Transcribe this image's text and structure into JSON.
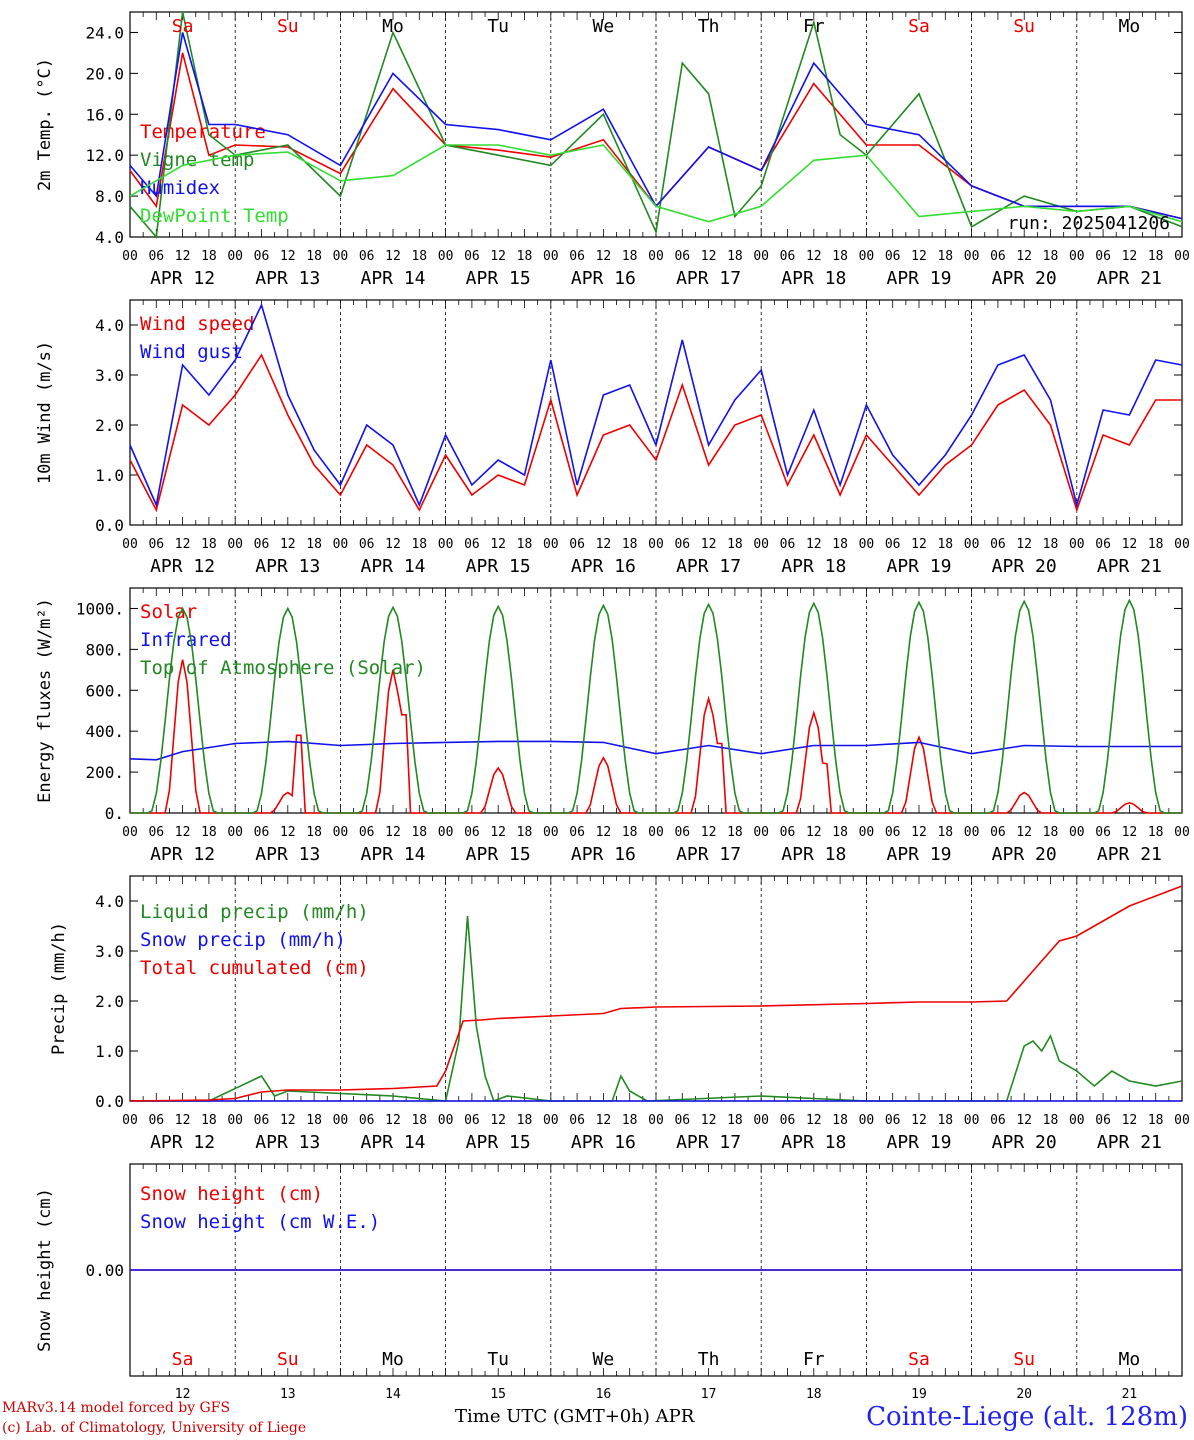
{
  "days": {
    "weekday_labels": [
      "Sa",
      "Su",
      "Mo",
      "Tu",
      "We",
      "Th",
      "Fr",
      "Sa",
      "Su",
      "Mo"
    ],
    "weekday_weekend": [
      true,
      true,
      false,
      false,
      false,
      false,
      false,
      true,
      true,
      false
    ],
    "date_labels": [
      "APR 12",
      "APR 13",
      "APR 14",
      "APR 15",
      "APR 16",
      "APR 17",
      "APR 18",
      "APR 19",
      "APR 20",
      "APR 21"
    ],
    "day_numbers": [
      "12",
      "13",
      "14",
      "15",
      "16",
      "17",
      "18",
      "19",
      "20",
      "21"
    ],
    "hour_ticks": [
      "00",
      "06",
      "12",
      "18"
    ],
    "hour_end": "00"
  },
  "colors": {
    "red": "#ee0000",
    "green": "#228822",
    "blue": "#1111ee",
    "lightgreen": "#33dd33",
    "weekend": "#ee0000"
  },
  "footer": {
    "line1": "MARv3.14 model forced by GFS",
    "line2": "(c) Lab. of Climatology, University of Liege",
    "axis_title": "Time UTC (GMT+0h)",
    "month": "APR",
    "station": "Cointe-Liege (alt. 128m)"
  },
  "chart_data": [
    {
      "type": "line",
      "ylabel": "2m Temp. (°C)",
      "ylim": [
        4.0,
        26.0
      ],
      "yticks": [
        "4.0",
        "8.0",
        "12.0",
        "16.0",
        "20.0",
        "24.0"
      ],
      "annotation": "run: 2025041206",
      "x_unit": "hours from APR 12 00 UTC",
      "series": [
        {
          "name": "Temperature",
          "color": "red",
          "x": [
            0,
            6,
            12,
            18,
            24,
            36,
            48,
            60,
            72,
            84,
            96,
            108,
            120,
            132,
            144,
            156,
            168,
            180,
            192,
            204,
            216,
            228,
            240
          ],
          "values": [
            10.5,
            7,
            22,
            12,
            13,
            12.8,
            10.2,
            18.5,
            13,
            12.5,
            11.8,
            13.5,
            7,
            12.8,
            10.5,
            19,
            13,
            13,
            9,
            7,
            7,
            7,
            5.8
          ]
        },
        {
          "name": "Vigne temp",
          "color": "green",
          "x": [
            0,
            6,
            12,
            18,
            24,
            36,
            48,
            60,
            72,
            84,
            96,
            108,
            120,
            126,
            132,
            138,
            144,
            156,
            162,
            168,
            180,
            192,
            204,
            216,
            228,
            240
          ],
          "values": [
            7,
            4,
            26,
            14,
            12,
            13,
            8,
            24,
            13,
            12,
            11,
            16,
            4.5,
            21,
            18,
            6,
            9,
            25,
            14,
            12,
            18,
            5,
            8,
            6.5,
            7,
            5
          ]
        },
        {
          "name": "Humidex",
          "color": "blue",
          "x": [
            0,
            6,
            12,
            18,
            24,
            36,
            48,
            60,
            72,
            84,
            96,
            108,
            120,
            132,
            144,
            156,
            168,
            180,
            192,
            204,
            216,
            228,
            240
          ],
          "values": [
            11,
            8,
            24,
            15,
            15,
            14,
            11,
            20,
            15,
            14.5,
            13.5,
            16.5,
            7,
            12.8,
            10.5,
            21,
            15,
            14,
            9,
            7,
            7,
            7,
            5.8
          ]
        },
        {
          "name": "DewPoint Temp",
          "color": "lightgreen",
          "x": [
            0,
            12,
            24,
            36,
            48,
            60,
            72,
            84,
            96,
            108,
            120,
            132,
            144,
            156,
            168,
            180,
            192,
            204,
            216,
            228,
            240
          ],
          "values": [
            8,
            11,
            12,
            12.3,
            9.5,
            10,
            13,
            13,
            12,
            13,
            7,
            5.5,
            7,
            11.5,
            12,
            6,
            6.5,
            7,
            6.5,
            7,
            5.5
          ]
        }
      ]
    },
    {
      "type": "line",
      "ylabel": "10m Wind (m/s)",
      "ylim": [
        0,
        4.5
      ],
      "yticks": [
        "0.0",
        "1.0",
        "2.0",
        "3.0",
        "4.0"
      ],
      "series": [
        {
          "name": "Wind speed",
          "color": "red",
          "x": [
            0,
            6,
            12,
            18,
            24,
            30,
            36,
            42,
            48,
            54,
            60,
            66,
            72,
            78,
            84,
            90,
            96,
            102,
            108,
            114,
            120,
            126,
            132,
            138,
            144,
            150,
            156,
            162,
            168,
            174,
            180,
            186,
            192,
            198,
            204,
            210,
            216,
            222,
            228,
            234,
            240
          ],
          "values": [
            1.3,
            0.3,
            2.4,
            2.0,
            2.6,
            3.4,
            2.2,
            1.2,
            0.6,
            1.6,
            1.2,
            0.3,
            1.4,
            0.6,
            1.0,
            0.8,
            2.5,
            0.6,
            1.8,
            2.0,
            1.3,
            2.8,
            1.2,
            2.0,
            2.2,
            0.8,
            1.8,
            0.6,
            1.8,
            1.2,
            0.6,
            1.2,
            1.6,
            2.4,
            2.7,
            2.0,
            0.3,
            1.8,
            1.6,
            2.5,
            2.5
          ]
        },
        {
          "name": "Wind gust",
          "color": "blue",
          "x": [
            0,
            6,
            12,
            18,
            24,
            30,
            36,
            42,
            48,
            54,
            60,
            66,
            72,
            78,
            84,
            90,
            96,
            102,
            108,
            114,
            120,
            126,
            132,
            138,
            144,
            150,
            156,
            162,
            168,
            174,
            180,
            186,
            192,
            198,
            204,
            210,
            216,
            222,
            228,
            234,
            240
          ],
          "values": [
            1.6,
            0.4,
            3.2,
            2.6,
            3.3,
            4.4,
            2.6,
            1.5,
            0.8,
            2.0,
            1.6,
            0.4,
            1.8,
            0.8,
            1.3,
            1.0,
            3.3,
            0.8,
            2.6,
            2.8,
            1.6,
            3.7,
            1.6,
            2.5,
            3.1,
            1.0,
            2.3,
            0.8,
            2.4,
            1.4,
            0.8,
            1.4,
            2.2,
            3.2,
            3.4,
            2.5,
            0.4,
            2.3,
            2.2,
            3.3,
            3.2
          ]
        }
      ]
    },
    {
      "type": "line",
      "ylabel": "Energy fluxes (W/m²)",
      "ylim": [
        0,
        1100
      ],
      "yticks": [
        "0.",
        "200.",
        "400.",
        "600.",
        "800.",
        "1000."
      ],
      "series": [
        {
          "name": "Solar",
          "color": "red",
          "peaks": [
            750,
            100,
            700,
            220,
            270,
            560,
            490,
            370,
            100,
            50
          ],
          "spikes": [
            0,
            380,
            480,
            0,
            0,
            340,
            240,
            0,
            0,
            0
          ]
        },
        {
          "name": "Infrared",
          "color": "blue",
          "x": [
            0,
            6,
            12,
            24,
            36,
            48,
            60,
            72,
            84,
            96,
            108,
            120,
            132,
            144,
            156,
            168,
            180,
            192,
            204,
            216,
            228,
            240
          ],
          "values": [
            265,
            260,
            300,
            340,
            350,
            330,
            340,
            345,
            350,
            350,
            345,
            290,
            330,
            290,
            330,
            330,
            345,
            290,
            330,
            325,
            325,
            325
          ]
        },
        {
          "name": "Top of Atmosphere (Solar)",
          "color": "green",
          "peaks": [
            1000,
            1000,
            1005,
            1010,
            1015,
            1020,
            1025,
            1030,
            1035,
            1040
          ]
        }
      ]
    },
    {
      "type": "line",
      "ylabel": "Precip (mm/h)",
      "ylim": [
        0,
        4.5
      ],
      "yticks": [
        "0.0",
        "1.0",
        "2.0",
        "3.0",
        "4.0"
      ],
      "series": [
        {
          "name": "Liquid precip (mm/h)",
          "color": "green",
          "x": [
            0,
            18,
            30,
            33,
            36,
            60,
            72,
            75,
            77,
            79,
            81,
            83,
            86,
            96,
            110,
            112,
            114,
            118,
            144,
            168,
            192,
            200,
            204,
            206,
            208,
            210,
            212,
            216,
            220,
            224,
            228,
            234,
            240
          ],
          "values": [
            0,
            0,
            0.5,
            0.1,
            0.2,
            0.1,
            0,
            1.2,
            3.7,
            1.5,
            0.5,
            0,
            0.1,
            0,
            0,
            0.5,
            0.2,
            0,
            0.1,
            0,
            0,
            0,
            1.1,
            1.2,
            1.0,
            1.3,
            0.8,
            0.6,
            0.3,
            0.6,
            0.4,
            0.3,
            0.4
          ]
        },
        {
          "name": "Snow precip (mm/h)",
          "color": "blue",
          "x": [
            0,
            240
          ],
          "values": [
            0,
            0
          ]
        },
        {
          "name": "Total cumulated (cm)",
          "color": "red",
          "x": [
            0,
            18,
            24,
            30,
            36,
            48,
            60,
            70,
            72,
            76,
            80,
            84,
            96,
            108,
            112,
            120,
            144,
            168,
            180,
            192,
            200,
            204,
            208,
            212,
            216,
            222,
            228,
            234,
            240
          ],
          "values": [
            0,
            0.02,
            0.05,
            0.18,
            0.22,
            0.22,
            0.25,
            0.3,
            0.6,
            1.6,
            1.62,
            1.65,
            1.7,
            1.75,
            1.85,
            1.88,
            1.9,
            1.95,
            1.98,
            1.98,
            2.0,
            2.4,
            2.8,
            3.2,
            3.3,
            3.6,
            3.9,
            4.1,
            4.3
          ]
        }
      ]
    },
    {
      "type": "line",
      "ylabel": "Snow height (cm)",
      "yticks": [
        "0.00"
      ],
      "series": [
        {
          "name": "Snow height (cm)",
          "color": "red",
          "x": [
            0,
            240
          ],
          "values": [
            0,
            0
          ]
        },
        {
          "name": "Snow height (cm W.E.)",
          "color": "blue",
          "x": [
            0,
            240
          ],
          "values": [
            0,
            0
          ]
        }
      ]
    }
  ]
}
